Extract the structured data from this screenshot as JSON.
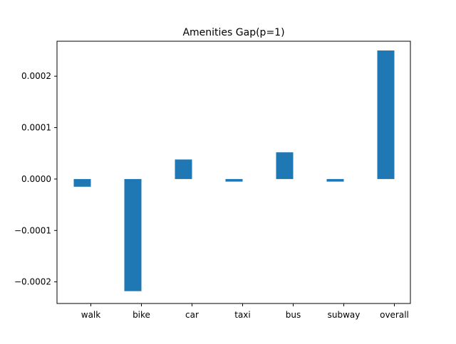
{
  "chart_data": {
    "type": "bar",
    "title": "Amenities Gap(p=1)",
    "xlabel": "",
    "ylabel": "",
    "categories": [
      "walk",
      "bike",
      "car",
      "taxi",
      "bus",
      "subway",
      "overall"
    ],
    "values": [
      -1.5e-05,
      -0.000218,
      3.8e-05,
      -5e-06,
      5.2e-05,
      -5e-06,
      0.00025
    ],
    "ylim": [
      -0.000242,
      0.000268
    ],
    "yticks": [
      -0.0002,
      -0.0001,
      0.0,
      0.0001,
      0.0002
    ],
    "ytick_labels": [
      "−0.0002",
      "−0.0001",
      "0.0000",
      "0.0001",
      "0.0002"
    ],
    "bar_color": "#1f77b4",
    "grid": false,
    "legend": "none"
  }
}
